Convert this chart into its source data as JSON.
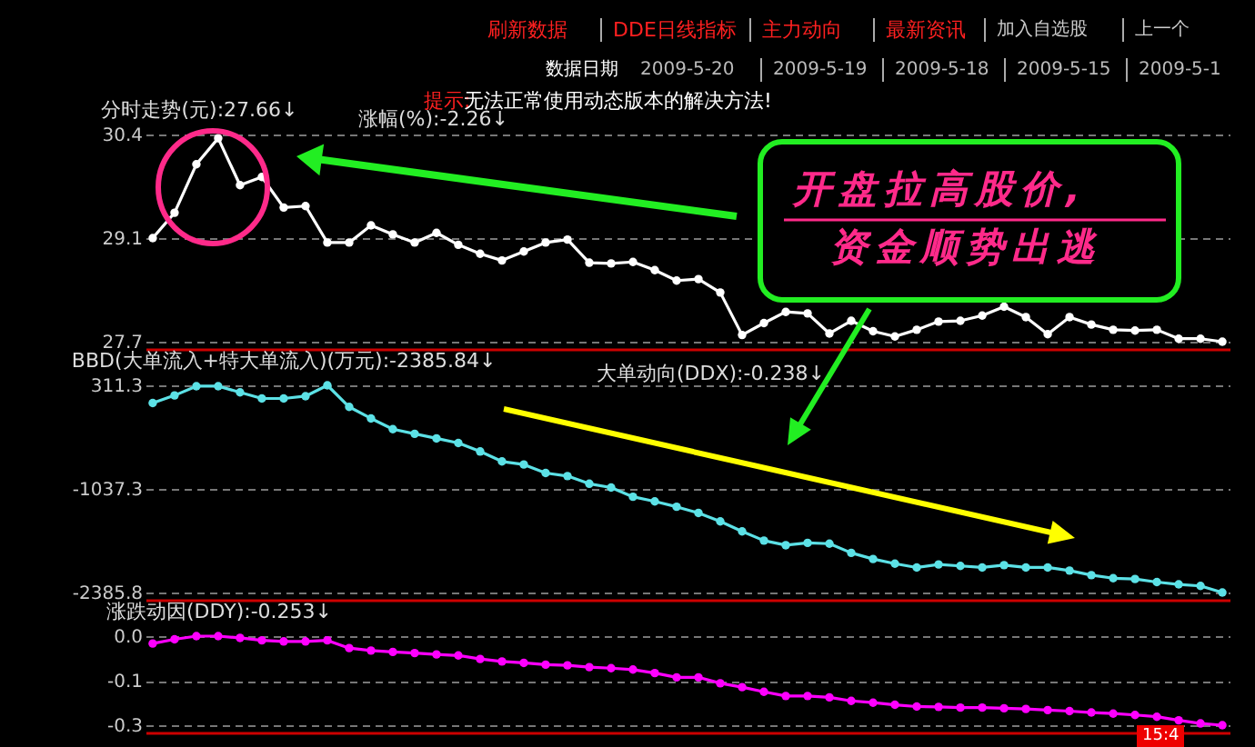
{
  "chart_data": [
    {
      "type": "line",
      "title": "分时走势(元):27.66↓",
      "categories": [
        null,
        null,
        null,
        null,
        null,
        null,
        null,
        null,
        null,
        null,
        null,
        null,
        null,
        null,
        null,
        null,
        null,
        null,
        null,
        null,
        null,
        null,
        null,
        null,
        null,
        null,
        null,
        null,
        null,
        null,
        null,
        null,
        null,
        null,
        null,
        null,
        null,
        null,
        null,
        null,
        null,
        null,
        null,
        null,
        null,
        null,
        null,
        null,
        null,
        null
      ],
      "series": [
        {
          "color": "#ffffff",
          "values": [
            29.05,
            29.39,
            30.04,
            30.39,
            29.76,
            29.87,
            29.46,
            29.48,
            28.99,
            28.99,
            29.22,
            29.1,
            28.99,
            29.12,
            28.96,
            28.84,
            28.75,
            28.87,
            28.99,
            29.03,
            28.72,
            28.71,
            28.73,
            28.62,
            28.48,
            28.5,
            28.32,
            27.75,
            27.91,
            28.06,
            28.04,
            27.77,
            27.94,
            27.8,
            27.73,
            27.82,
            27.93,
            27.94,
            28.01,
            28.13,
            27.99,
            27.76,
            27.99,
            27.89,
            27.82,
            27.81,
            27.82,
            27.7,
            27.7,
            27.66
          ]
        }
      ],
      "ylim": [
        27.66,
        30.44
      ],
      "yticks": [
        {
          "value": 27.66,
          "label": "27.7"
        },
        {
          "value": 29.05,
          "label": "29.1"
        },
        {
          "value": 30.44,
          "label": "30.4"
        }
      ],
      "grid": "y",
      "marker": "circle",
      "line_style": "solid",
      "tick_labels": "y",
      "annotations": [
        "刷新数据",
        "DDE日线指标",
        "主力动向",
        "最新资讯",
        "加入自选股",
        "上一个",
        "数据日期",
        "2009-5-20",
        "2009-5-19",
        "2009-5-18",
        "2009-5-15",
        "2009-5-1",
        "提示:",
        "无法正常使用动态版本的解决方法!",
        "涨幅(%):-2.26↓",
        "开盘拉高股价,",
        "资金顺势出逃"
      ]
    },
    {
      "type": "line",
      "title": "BBD(大单流入+特大单流入)(万元):-2385.84↓",
      "categories": [
        null,
        null,
        null,
        null,
        null,
        null,
        null,
        null,
        null,
        null,
        null,
        null,
        null,
        null,
        null,
        null,
        null,
        null,
        null,
        null,
        null,
        null,
        null,
        null,
        null,
        null,
        null,
        null,
        null,
        null,
        null,
        null,
        null,
        null,
        null,
        null,
        null,
        null,
        null,
        null,
        null,
        null,
        null,
        null,
        null,
        null,
        null,
        null,
        null,
        null
      ],
      "series": [
        {
          "color": "#5ce1e6",
          "values": [
            80,
            180,
            300,
            300,
            220,
            140,
            140,
            170,
            311.3,
            30,
            -120,
            -260,
            -320,
            -380,
            -440,
            -550,
            -680,
            -720,
            -830,
            -870,
            -970,
            -1020,
            -1140,
            -1200,
            -1270,
            -1350,
            -1460,
            -1590,
            -1710,
            -1770,
            -1740,
            -1750,
            -1870,
            -1950,
            -2010,
            -2060,
            -2020,
            -2040,
            -2060,
            -2030,
            -2060,
            -2060,
            -2100,
            -2160,
            -2200,
            -2210,
            -2250,
            -2280,
            -2300,
            -2385.84
          ]
        }
      ],
      "ylim": [
        -2385.84,
        311.3
      ],
      "yticks": [
        {
          "value": -2385.84,
          "label": "-2385.8"
        },
        -1037.3,
        311.3
      ],
      "grid": "y",
      "marker": "circle",
      "line_style": "solid",
      "tick_labels": "y",
      "annotations": [
        "大单动向(DDX):-0.238↓"
      ]
    },
    {
      "type": "line",
      "title": "涨跌动因(DDY):-0.253↓",
      "categories": [
        null,
        null,
        null,
        null,
        null,
        null,
        null,
        null,
        null,
        null,
        null,
        null,
        null,
        null,
        null,
        null,
        null,
        null,
        null,
        null,
        null,
        null,
        null,
        null,
        null,
        null,
        null,
        null,
        null,
        null,
        null,
        null,
        null,
        null,
        null,
        null,
        null,
        null,
        null,
        null,
        null,
        null,
        null,
        null,
        null,
        null,
        null,
        null,
        null,
        null
      ],
      "series": [
        {
          "color": "#ff00ff",
          "values": [
            -0.021,
            -0.009,
            0,
            0,
            -0.005,
            -0.012,
            -0.015,
            -0.015,
            -0.012,
            -0.034,
            -0.041,
            -0.045,
            -0.048,
            -0.052,
            -0.055,
            -0.065,
            -0.072,
            -0.076,
            -0.081,
            -0.083,
            -0.088,
            -0.091,
            -0.095,
            -0.105,
            -0.117,
            -0.117,
            -0.134,
            -0.145,
            -0.158,
            -0.17,
            -0.17,
            -0.174,
            -0.184,
            -0.189,
            -0.195,
            -0.2,
            -0.201,
            -0.203,
            -0.203,
            -0.205,
            -0.207,
            -0.21,
            -0.213,
            -0.217,
            -0.22,
            -0.224,
            -0.229,
            -0.239,
            -0.248,
            -0.253
          ]
        }
      ],
      "ylim": [
        -0.253,
        0
      ],
      "yticks": [
        {
          "value": -0.253,
          "label": "-0.3"
        },
        {
          "value": -0.127,
          "label": "-0.1"
        },
        {
          "value": 0,
          "label": "0.0"
        }
      ],
      "grid": "y",
      "marker": "circle",
      "line_style": "solid",
      "tick_labels": "y",
      "annotations": [
        "15:4"
      ]
    }
  ]
}
